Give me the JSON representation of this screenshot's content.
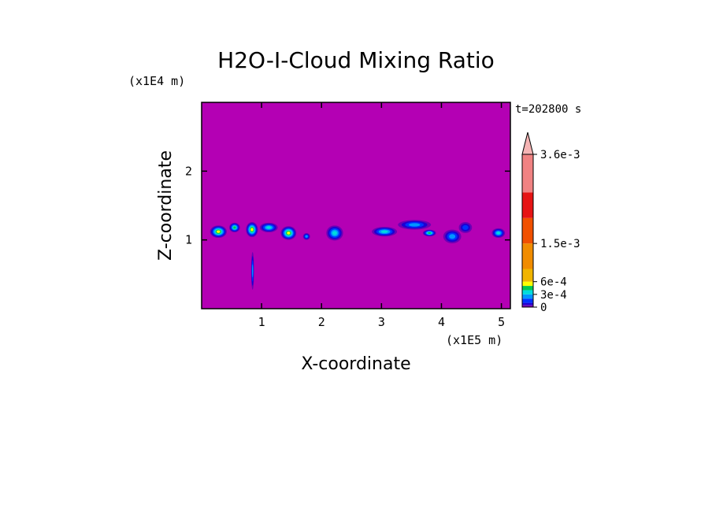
{
  "chart_data": {
    "type": "heatmap",
    "title": "H2O-I-Cloud Mixing Ratio",
    "timestamp": "t=202800 s",
    "xlabel": "X-coordinate",
    "ylabel": "Z-coordinate",
    "x_unit": "(x1E5 m)",
    "y_unit": "(x1E4 m)",
    "xlim": [
      0,
      5.15
    ],
    "ylim": [
      0,
      3.0
    ],
    "x_ticks": [
      1,
      2,
      3,
      4,
      5
    ],
    "y_ticks": [
      1,
      2
    ],
    "background_color": "#b400b4",
    "colorbar": {
      "levels": [
        {
          "value": 0,
          "color": "#b400b4"
        },
        {
          "value": 5e-05,
          "color": "#6e00b4"
        },
        {
          "value": 0.0001,
          "color": "#1e00d2"
        },
        {
          "value": 0.0002,
          "color": "#0032ff"
        },
        {
          "value": 0.0003,
          "color": "#0096ff"
        },
        {
          "value": 0.0004,
          "color": "#00dcdc"
        },
        {
          "value": 0.0005,
          "color": "#00c850"
        },
        {
          "value": 0.0006,
          "color": "#ffff00"
        },
        {
          "value": 0.0009,
          "color": "#f0b400"
        },
        {
          "value": 0.0015,
          "color": "#f08c00"
        },
        {
          "value": 0.0021,
          "color": "#f05000"
        },
        {
          "value": 0.0027,
          "color": "#e61414"
        },
        {
          "value": 0.0036,
          "color": "#f08282"
        }
      ],
      "extend_color": "#f5b4b4",
      "labels": [
        {
          "value": 0.0036,
          "text": "3.6e-3"
        },
        {
          "value": 0.0015,
          "text": "1.5e-3"
        },
        {
          "value": 0.0006,
          "text": "6e-4"
        },
        {
          "value": 0.0003,
          "text": "3e-4"
        },
        {
          "value": 0,
          "text": "0"
        }
      ]
    },
    "cloud_features": [
      {
        "x": 0.28,
        "z": 1.12,
        "w": 0.28,
        "h": 0.18,
        "level": 7
      },
      {
        "x": 0.55,
        "z": 1.18,
        "w": 0.18,
        "h": 0.14,
        "level": 6
      },
      {
        "x": 0.84,
        "z": 1.15,
        "w": 0.2,
        "h": 0.22,
        "level": 7
      },
      {
        "x": 0.85,
        "z": 0.55,
        "w": 0.05,
        "h": 0.55,
        "level": 4
      },
      {
        "x": 1.12,
        "z": 1.18,
        "w": 0.3,
        "h": 0.14,
        "level": 5
      },
      {
        "x": 1.45,
        "z": 1.1,
        "w": 0.26,
        "h": 0.2,
        "level": 7
      },
      {
        "x": 1.75,
        "z": 1.05,
        "w": 0.12,
        "h": 0.1,
        "level": 4
      },
      {
        "x": 2.22,
        "z": 1.1,
        "w": 0.28,
        "h": 0.22,
        "level": 5
      },
      {
        "x": 3.05,
        "z": 1.12,
        "w": 0.42,
        "h": 0.14,
        "level": 5
      },
      {
        "x": 3.55,
        "z": 1.22,
        "w": 0.55,
        "h": 0.14,
        "level": 4
      },
      {
        "x": 3.8,
        "z": 1.1,
        "w": 0.22,
        "h": 0.1,
        "level": 6
      },
      {
        "x": 4.18,
        "z": 1.05,
        "w": 0.3,
        "h": 0.2,
        "level": 4
      },
      {
        "x": 4.4,
        "z": 1.18,
        "w": 0.22,
        "h": 0.16,
        "level": 3
      },
      {
        "x": 4.95,
        "z": 1.1,
        "w": 0.22,
        "h": 0.14,
        "level": 5
      }
    ]
  }
}
